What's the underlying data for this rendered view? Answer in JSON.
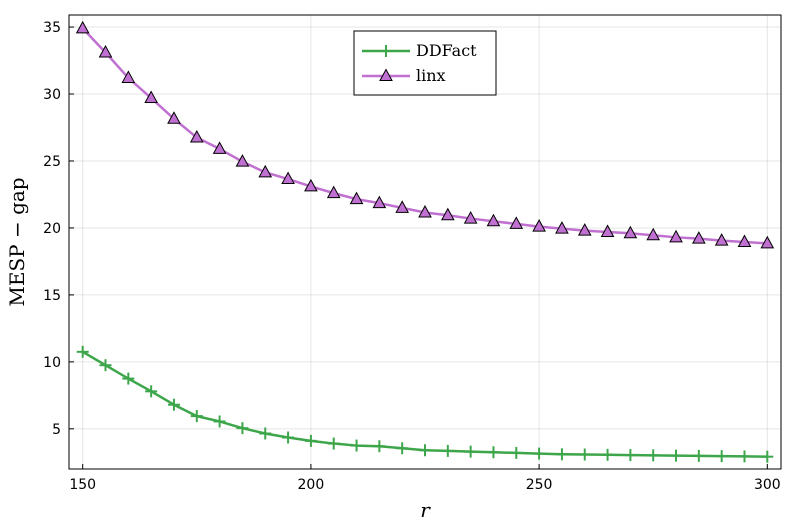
{
  "chart_data": {
    "type": "line",
    "title": "",
    "xlabel": "r",
    "ylabel": "MESP − gap",
    "xlim": [
      147,
      303
    ],
    "ylim": [
      2.0,
      35.9
    ],
    "x_ticks": [
      150,
      200,
      250,
      300
    ],
    "y_ticks": [
      5,
      10,
      15,
      20,
      25,
      30,
      35
    ],
    "grid": true,
    "legend_position": "top-center",
    "x": [
      150,
      155,
      160,
      165,
      170,
      175,
      180,
      185,
      190,
      195,
      200,
      205,
      210,
      215,
      220,
      225,
      230,
      235,
      240,
      245,
      250,
      255,
      260,
      265,
      270,
      275,
      280,
      285,
      290,
      295,
      300
    ],
    "series": [
      {
        "name": "DDFact",
        "color": "#3da64a",
        "marker": "cross",
        "values": [
          10.75,
          9.75,
          8.75,
          7.8,
          6.8,
          5.95,
          5.55,
          5.05,
          4.65,
          4.35,
          4.1,
          3.9,
          3.75,
          3.7,
          3.55,
          3.4,
          3.35,
          3.3,
          3.25,
          3.2,
          3.15,
          3.1,
          3.08,
          3.06,
          3.04,
          3.02,
          3.0,
          2.98,
          2.96,
          2.94,
          2.92
        ]
      },
      {
        "name": "linx",
        "color": "#c070d0",
        "marker": "triangle",
        "values": [
          34.9,
          33.1,
          31.2,
          29.7,
          28.15,
          26.75,
          25.9,
          24.95,
          24.15,
          23.65,
          23.1,
          22.6,
          22.15,
          21.85,
          21.5,
          21.15,
          20.95,
          20.7,
          20.5,
          20.3,
          20.1,
          19.95,
          19.8,
          19.7,
          19.6,
          19.45,
          19.3,
          19.2,
          19.05,
          18.95,
          18.85
        ]
      }
    ]
  }
}
